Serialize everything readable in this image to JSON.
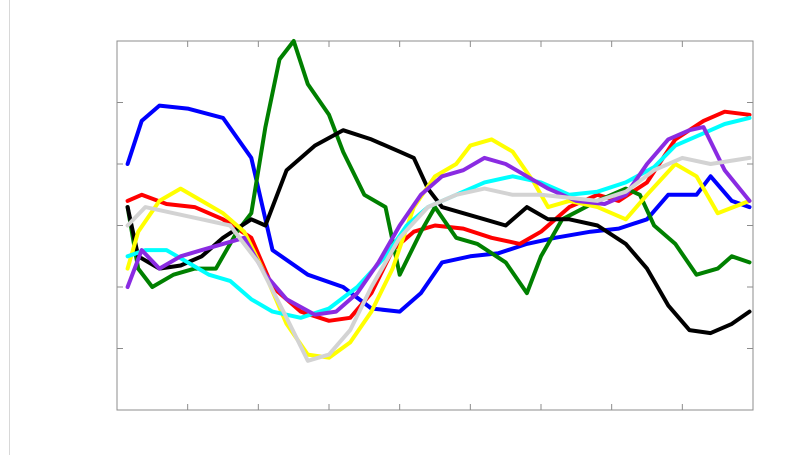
{
  "chart_data": {
    "type": "line",
    "title": "",
    "xlabel": "",
    "ylabel": "",
    "xlim": [
      0,
      9
    ],
    "ylim": [
      0,
      6
    ],
    "x_ticks": [
      0,
      1,
      2,
      3,
      4,
      5,
      6,
      7,
      8,
      9
    ],
    "y_ticks": [
      0,
      1,
      2,
      3,
      4,
      5,
      6
    ],
    "grid": false,
    "legend": "none",
    "series": [
      {
        "color": "#0000ff",
        "values": [
          [
            0.15,
            4.0
          ],
          [
            0.35,
            4.7
          ],
          [
            0.6,
            4.95
          ],
          [
            1.0,
            4.9
          ],
          [
            1.5,
            4.75
          ],
          [
            1.9,
            4.1
          ],
          [
            2.2,
            2.6
          ],
          [
            2.7,
            2.2
          ],
          [
            3.2,
            2.0
          ],
          [
            3.6,
            1.65
          ],
          [
            4.0,
            1.6
          ],
          [
            4.3,
            1.9
          ],
          [
            4.6,
            2.4
          ],
          [
            5.0,
            2.5
          ],
          [
            5.4,
            2.55
          ],
          [
            5.8,
            2.7
          ],
          [
            6.2,
            2.8
          ],
          [
            6.7,
            2.9
          ],
          [
            7.1,
            2.95
          ],
          [
            7.5,
            3.1
          ],
          [
            7.8,
            3.5
          ],
          [
            8.2,
            3.5
          ],
          [
            8.4,
            3.8
          ],
          [
            8.7,
            3.4
          ],
          [
            8.95,
            3.3
          ]
        ]
      },
      {
        "color": "#ff0000",
        "values": [
          [
            0.15,
            3.4
          ],
          [
            0.35,
            3.5
          ],
          [
            0.7,
            3.35
          ],
          [
            1.1,
            3.3
          ],
          [
            1.5,
            3.1
          ],
          [
            1.9,
            2.8
          ],
          [
            2.2,
            2.0
          ],
          [
            2.6,
            1.6
          ],
          [
            3.0,
            1.45
          ],
          [
            3.3,
            1.5
          ],
          [
            3.6,
            1.9
          ],
          [
            3.9,
            2.6
          ],
          [
            4.2,
            2.9
          ],
          [
            4.5,
            3.0
          ],
          [
            4.9,
            2.95
          ],
          [
            5.3,
            2.8
          ],
          [
            5.7,
            2.7
          ],
          [
            6.0,
            2.9
          ],
          [
            6.4,
            3.3
          ],
          [
            6.8,
            3.5
          ],
          [
            7.1,
            3.4
          ],
          [
            7.5,
            3.7
          ],
          [
            7.9,
            4.4
          ],
          [
            8.3,
            4.7
          ],
          [
            8.6,
            4.85
          ],
          [
            8.95,
            4.8
          ]
        ]
      },
      {
        "color": "#008000",
        "values": [
          [
            0.15,
            3.3
          ],
          [
            0.3,
            2.3
          ],
          [
            0.5,
            2.0
          ],
          [
            0.8,
            2.2
          ],
          [
            1.1,
            2.3
          ],
          [
            1.4,
            2.3
          ],
          [
            1.7,
            2.9
          ],
          [
            1.9,
            3.2
          ],
          [
            2.1,
            4.6
          ],
          [
            2.3,
            5.7
          ],
          [
            2.5,
            6.0
          ],
          [
            2.7,
            5.3
          ],
          [
            3.0,
            4.8
          ],
          [
            3.2,
            4.2
          ],
          [
            3.5,
            3.5
          ],
          [
            3.8,
            3.3
          ],
          [
            4.0,
            2.2
          ],
          [
            4.3,
            2.9
          ],
          [
            4.5,
            3.3
          ],
          [
            4.8,
            2.8
          ],
          [
            5.1,
            2.7
          ],
          [
            5.5,
            2.4
          ],
          [
            5.8,
            1.9
          ],
          [
            6.0,
            2.5
          ],
          [
            6.3,
            3.1
          ],
          [
            6.8,
            3.4
          ],
          [
            7.2,
            3.6
          ],
          [
            7.4,
            3.5
          ],
          [
            7.6,
            3.0
          ],
          [
            7.9,
            2.7
          ],
          [
            8.2,
            2.2
          ],
          [
            8.5,
            2.3
          ],
          [
            8.7,
            2.5
          ],
          [
            8.95,
            2.4
          ]
        ]
      },
      {
        "color": "#000000",
        "values": [
          [
            0.15,
            3.3
          ],
          [
            0.3,
            2.5
          ],
          [
            0.6,
            2.3
          ],
          [
            0.9,
            2.35
          ],
          [
            1.2,
            2.5
          ],
          [
            1.5,
            2.8
          ],
          [
            1.9,
            3.1
          ],
          [
            2.1,
            3.0
          ],
          [
            2.4,
            3.9
          ],
          [
            2.8,
            4.3
          ],
          [
            3.2,
            4.55
          ],
          [
            3.6,
            4.4
          ],
          [
            4.0,
            4.2
          ],
          [
            4.2,
            4.1
          ],
          [
            4.4,
            3.6
          ],
          [
            4.6,
            3.3
          ],
          [
            4.9,
            3.2
          ],
          [
            5.2,
            3.1
          ],
          [
            5.5,
            3.0
          ],
          [
            5.8,
            3.3
          ],
          [
            6.1,
            3.1
          ],
          [
            6.4,
            3.1
          ],
          [
            6.8,
            3.0
          ],
          [
            7.2,
            2.7
          ],
          [
            7.5,
            2.3
          ],
          [
            7.8,
            1.7
          ],
          [
            8.1,
            1.3
          ],
          [
            8.4,
            1.25
          ],
          [
            8.7,
            1.4
          ],
          [
            8.95,
            1.6
          ]
        ]
      },
      {
        "color": "#ffff00",
        "values": [
          [
            0.15,
            2.3
          ],
          [
            0.3,
            2.9
          ],
          [
            0.6,
            3.4
          ],
          [
            0.9,
            3.6
          ],
          [
            1.2,
            3.4
          ],
          [
            1.5,
            3.2
          ],
          [
            1.8,
            2.9
          ],
          [
            2.1,
            2.2
          ],
          [
            2.4,
            1.4
          ],
          [
            2.7,
            0.9
          ],
          [
            3.0,
            0.85
          ],
          [
            3.3,
            1.1
          ],
          [
            3.6,
            1.6
          ],
          [
            3.9,
            2.3
          ],
          [
            4.2,
            3.3
          ],
          [
            4.5,
            3.8
          ],
          [
            4.8,
            4.0
          ],
          [
            5.0,
            4.3
          ],
          [
            5.3,
            4.4
          ],
          [
            5.6,
            4.2
          ],
          [
            5.9,
            3.7
          ],
          [
            6.1,
            3.3
          ],
          [
            6.4,
            3.4
          ],
          [
            6.8,
            3.3
          ],
          [
            7.2,
            3.1
          ],
          [
            7.5,
            3.5
          ],
          [
            7.9,
            4.0
          ],
          [
            8.2,
            3.8
          ],
          [
            8.5,
            3.2
          ],
          [
            8.95,
            3.4
          ]
        ]
      },
      {
        "color": "#00ffff",
        "values": [
          [
            0.15,
            2.5
          ],
          [
            0.4,
            2.6
          ],
          [
            0.7,
            2.6
          ],
          [
            1.0,
            2.4
          ],
          [
            1.3,
            2.2
          ],
          [
            1.6,
            2.1
          ],
          [
            1.9,
            1.8
          ],
          [
            2.2,
            1.6
          ],
          [
            2.6,
            1.5
          ],
          [
            3.0,
            1.65
          ],
          [
            3.4,
            2.0
          ],
          [
            3.8,
            2.5
          ],
          [
            4.1,
            3.0
          ],
          [
            4.4,
            3.3
          ],
          [
            4.8,
            3.5
          ],
          [
            5.2,
            3.7
          ],
          [
            5.6,
            3.8
          ],
          [
            6.0,
            3.7
          ],
          [
            6.4,
            3.5
          ],
          [
            6.8,
            3.55
          ],
          [
            7.2,
            3.7
          ],
          [
            7.6,
            3.95
          ],
          [
            7.9,
            4.3
          ],
          [
            8.3,
            4.5
          ],
          [
            8.6,
            4.65
          ],
          [
            8.95,
            4.75
          ]
        ]
      },
      {
        "color": "#8a2be2",
        "values": [
          [
            0.15,
            2.0
          ],
          [
            0.35,
            2.6
          ],
          [
            0.6,
            2.3
          ],
          [
            0.9,
            2.5
          ],
          [
            1.2,
            2.6
          ],
          [
            1.5,
            2.7
          ],
          [
            1.8,
            2.8
          ],
          [
            2.1,
            2.2
          ],
          [
            2.4,
            1.8
          ],
          [
            2.8,
            1.55
          ],
          [
            3.1,
            1.6
          ],
          [
            3.4,
            1.9
          ],
          [
            3.7,
            2.4
          ],
          [
            4.0,
            3.0
          ],
          [
            4.3,
            3.5
          ],
          [
            4.6,
            3.8
          ],
          [
            4.9,
            3.9
          ],
          [
            5.2,
            4.1
          ],
          [
            5.5,
            4.0
          ],
          [
            5.8,
            3.8
          ],
          [
            6.1,
            3.6
          ],
          [
            6.5,
            3.4
          ],
          [
            6.9,
            3.35
          ],
          [
            7.2,
            3.5
          ],
          [
            7.5,
            4.0
          ],
          [
            7.8,
            4.4
          ],
          [
            8.1,
            4.55
          ],
          [
            8.3,
            4.6
          ],
          [
            8.6,
            3.9
          ],
          [
            8.95,
            3.4
          ]
        ]
      },
      {
        "color": "#d3d3d3",
        "values": [
          [
            0.15,
            3.0
          ],
          [
            0.4,
            3.3
          ],
          [
            0.8,
            3.2
          ],
          [
            1.2,
            3.1
          ],
          [
            1.6,
            3.0
          ],
          [
            2.0,
            2.4
          ],
          [
            2.4,
            1.5
          ],
          [
            2.7,
            0.8
          ],
          [
            3.0,
            0.9
          ],
          [
            3.3,
            1.3
          ],
          [
            3.6,
            2.0
          ],
          [
            4.0,
            2.8
          ],
          [
            4.4,
            3.3
          ],
          [
            4.8,
            3.5
          ],
          [
            5.2,
            3.6
          ],
          [
            5.6,
            3.5
          ],
          [
            6.0,
            3.5
          ],
          [
            6.4,
            3.45
          ],
          [
            6.8,
            3.4
          ],
          [
            7.2,
            3.55
          ],
          [
            7.6,
            3.9
          ],
          [
            8.0,
            4.1
          ],
          [
            8.4,
            4.0
          ],
          [
            8.95,
            4.1
          ]
        ]
      }
    ]
  }
}
